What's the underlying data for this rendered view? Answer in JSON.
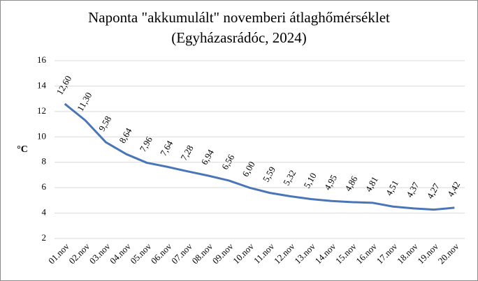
{
  "chart_data": {
    "type": "line",
    "title": "Naponta \"akkumulált\" novemberi átlaghőmérséklet",
    "subtitle": "(Egyházasrádóc,  2024)",
    "y_label": "°C",
    "categories": [
      "01.nov",
      "02.nov",
      "03.nov",
      "04.nov",
      "05.nov",
      "06.nov",
      "07.nov",
      "08.nov",
      "09.nov",
      "10.nov",
      "11.nov",
      "12.nov",
      "13.nov",
      "14.nov",
      "15.nov",
      "16.nov",
      "17.nov",
      "18.nov",
      "19.nov",
      "20.nov"
    ],
    "values": [
      12.6,
      11.3,
      9.58,
      8.64,
      7.96,
      7.64,
      7.28,
      6.94,
      6.56,
      6.0,
      5.59,
      5.32,
      5.1,
      4.95,
      4.86,
      4.81,
      4.51,
      4.37,
      4.27,
      4.42
    ],
    "value_labels": [
      "12,60",
      "11,30",
      "9,58",
      "8,64",
      "7,96",
      "7,64",
      "7,28",
      "6,94",
      "6,56",
      "6,00",
      "5,59",
      "5,32",
      "5,10",
      "4,95",
      "4,86",
      "4,81",
      "4,51",
      "4,37",
      "4,27",
      "4,42"
    ],
    "color": "#4a76b8",
    "ylim": [
      2,
      16
    ],
    "yticks": [
      2,
      4,
      6,
      8,
      10,
      12,
      14,
      16
    ],
    "grid": true
  }
}
